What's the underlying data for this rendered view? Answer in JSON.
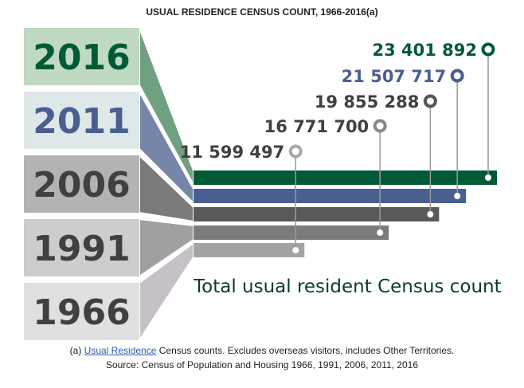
{
  "chart_data": {
    "type": "bar",
    "orientation": "horizontal",
    "title": "USUAL RESIDENCE CENSUS COUNT, 1966-2016(a)",
    "categories": [
      "2016",
      "2011",
      "2006",
      "1991",
      "1966"
    ],
    "values": [
      23401892,
      21507717,
      19855288,
      16771700,
      11599497
    ],
    "value_labels": [
      "23 401 892",
      "21 507 717",
      "19 855 288",
      "16 771 700",
      "11 599 497"
    ],
    "annotation": "Total usual resident Census count",
    "colors": {
      "bars": [
        "#005a36",
        "#495f8f",
        "#595959",
        "#7b7b7b",
        "#a3a3a3"
      ],
      "boxes": [
        "#c0d9c2",
        "#dfe8e8",
        "#b3b3b3",
        "#cdcdcd",
        "#e0e0e0"
      ],
      "funnels": [
        "#6fa07f",
        "#7686a8",
        "#7a7a7a",
        "#a0a0a0",
        "#c8c0c8"
      ],
      "year_text": [
        "#005a36",
        "#495f8f",
        "#404040",
        "#404040",
        "#404040"
      ],
      "label_text": [
        "#005a36",
        "#495f8f",
        "#404040",
        "#404040",
        "#404040"
      ],
      "markers": [
        "#005a36",
        "#495f8f",
        "#555555",
        "#888888",
        "#aaaaaa"
      ]
    }
  },
  "footnote": {
    "prefix": "(a) ",
    "link": "Usual Residence",
    "suffix": " Census counts. Excludes overseas visitors, includes Other Territories."
  },
  "source": "Source: Census of Population and Housing 1966, 1991, 2006, 2011, 2016"
}
